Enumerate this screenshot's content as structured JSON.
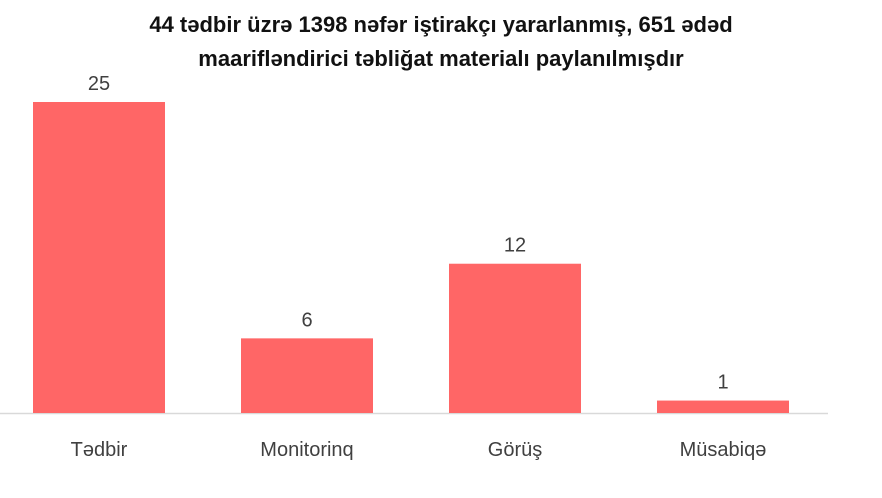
{
  "chart_data": {
    "type": "bar",
    "title_lines": [
      "44 tədbir üzrə 1398 nəfər iştirakçı yararlanmış, 651 ədəd",
      "maarifləndirici təbliğat materialı paylanılmışdır"
    ],
    "categories": [
      "Tədbir",
      "Monitorinq",
      "Görüş",
      "Müsabiqə"
    ],
    "values": [
      25,
      6,
      12,
      1
    ],
    "ylim": [
      0,
      25
    ],
    "grid": false,
    "legend": "none",
    "bar_color": "#ff6666",
    "axis_color": "#d9d9d9"
  }
}
